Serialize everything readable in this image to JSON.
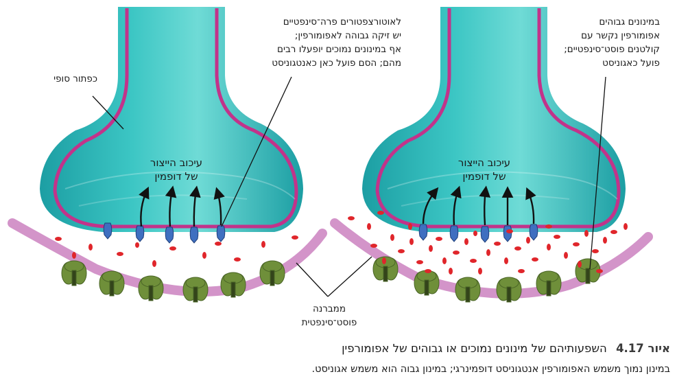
{
  "labels": {
    "left_top_right": [
      "לאוטורצפטורים פרה־סינפטיים",
      "יש זיקה גבוהה לאפומורפין;",
      "אף במינונים נמוכים יופעלו רבים",
      "מהם; הסם פועל כאן כאנטגוניסט"
    ],
    "terminal_button": "כפתור סופי",
    "arrows_left": [
      "עיכוב הייצור",
      "של דופמין"
    ],
    "arrows_right": [
      "עיכוב הייצור",
      "של דופמין"
    ],
    "right_top": [
      "במינונים גבוהים",
      "אפומורפין נקשר עם",
      "קולטנים פוסט־סינפטיים;",
      "פועל כאגוניסט"
    ],
    "membrane": [
      "ממברנה",
      "פוסט־סינפטית"
    ]
  },
  "caption": {
    "figure_number": "איור 4.17",
    "title": "השפעותיהם של מינונים נמוכים או גבוהים של אפומורפין",
    "body": "במינון נמוך משמש האפומורפין אנטגוניסט דופמינרגי; במינון גבוה הוא משמש אגוניסט."
  },
  "colors": {
    "terminal_fill": "#2fb8b8",
    "terminal_outline": "#c2338a",
    "membrane": "#d394c9",
    "receptor": "#6f8f3a",
    "autoreceptor": "#3f6fc0",
    "drug_dot": "#e0262b"
  }
}
